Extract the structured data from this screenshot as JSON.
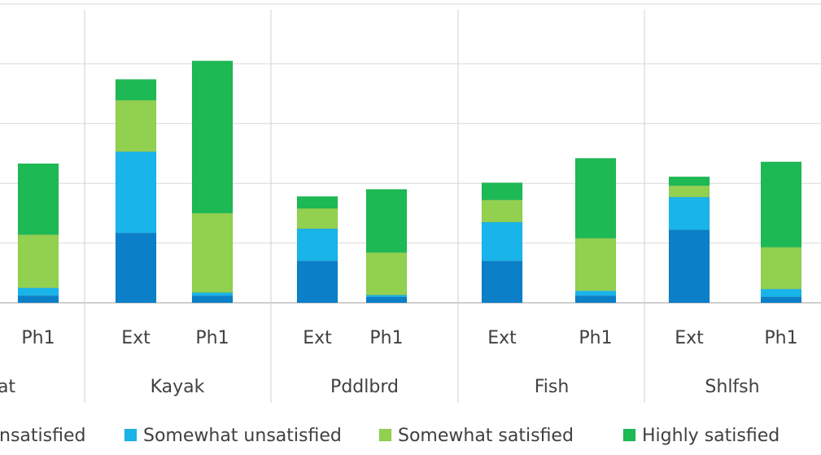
{
  "chart_data": {
    "type": "bar",
    "stacked": true,
    "groups": [
      "...at",
      "Kayak",
      "Pddlbrd",
      "Fish",
      "Shlfsh"
    ],
    "categories": [
      "Ph1",
      "Ext",
      "Ph1",
      "Ext",
      "Ph1",
      "Ext",
      "Ph1",
      "Ext",
      "Ph1"
    ],
    "category_groups": [
      "...at",
      "Kayak",
      "Kayak",
      "Pddlbrd",
      "Pddlbrd",
      "Fish",
      "Fish",
      "Shlfsh",
      "Shlfsh"
    ],
    "tick_labels": [
      "Ph1",
      "Ext",
      "Ph1",
      "Ext",
      "Ph1",
      "Ext",
      "Ph1",
      "Ext",
      "Ph1"
    ],
    "group_labels": [
      "at",
      "Kayak",
      "Pddlbrd",
      "Fish",
      "Shlfsh"
    ],
    "series": [
      {
        "name": "...nsatisfied",
        "color": "#0b7fc7",
        "values": [
          1.2,
          11.7,
          1.2,
          7.0,
          1.0,
          7.0,
          1.2,
          12.2,
          1.0
        ]
      },
      {
        "name": "Somewhat unsatisfied",
        "color": "#19b4ea",
        "values": [
          1.3,
          13.6,
          0.5,
          5.4,
          0.3,
          6.5,
          0.8,
          5.5,
          1.3
        ]
      },
      {
        "name": "Somewhat satisfied",
        "color": "#92d050",
        "values": [
          8.9,
          8.6,
          13.3,
          3.4,
          7.1,
          3.7,
          8.8,
          1.9,
          7.0
        ]
      },
      {
        "name": "Highly satisfied",
        "color": "#1db954",
        "values": [
          11.9,
          3.5,
          25.5,
          2.0,
          10.6,
          2.9,
          13.4,
          1.5,
          14.3
        ]
      }
    ],
    "legend_labels": [
      "nsatisfied",
      "Somewhat unsatisfied",
      "Somewhat satisfied",
      "Highly satisfied"
    ],
    "ylim": [
      0,
      50
    ],
    "grid": true,
    "legend_position": "bottom"
  }
}
